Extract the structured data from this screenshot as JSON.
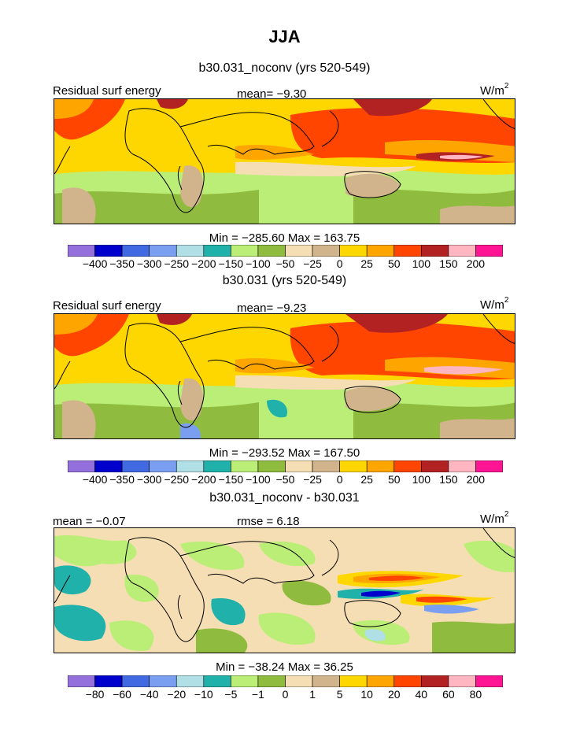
{
  "header": {
    "title": "JJA"
  },
  "chart_data": [
    {
      "type": "heatmap",
      "title": "b30.031_noconv (yrs 520-549)",
      "variable": "Residual surf energy",
      "units_base": "W/m",
      "units_exp": "2",
      "stat_left": "Residual surf energy",
      "stat_center": "mean=   −9.30",
      "minmax": "Min = −285.60 Max = 163.75",
      "levels": [
        "−400",
        "−350",
        "−300",
        "−250",
        "−200",
        "−150",
        "−100",
        "−50",
        "−25",
        "0",
        "25",
        "50",
        "100",
        "150",
        "200"
      ],
      "colors": [
        "#9370db",
        "#0000cd",
        "#4169e1",
        "#7b9ff0",
        "#b0e0e6",
        "#20b2aa",
        "#bbee77",
        "#8fbc3f",
        "#f5deb3",
        "#d2b48c",
        "#ffd700",
        "#ffa500",
        "#ff4500",
        "#b22222",
        "#ffb6c1",
        "#ff1493"
      ]
    },
    {
      "type": "heatmap",
      "title": "b30.031 (yrs 520-549)",
      "variable": "Residual surf energy",
      "units_base": "W/m",
      "units_exp": "2",
      "stat_left": "Residual surf energy",
      "stat_center": "mean=   −9.23",
      "minmax": "Min = −293.52 Max = 167.50",
      "levels": [
        "−400",
        "−350",
        "−300",
        "−250",
        "−200",
        "−150",
        "−100",
        "−50",
        "−25",
        "0",
        "25",
        "50",
        "100",
        "150",
        "200"
      ],
      "colors": [
        "#9370db",
        "#0000cd",
        "#4169e1",
        "#7b9ff0",
        "#b0e0e6",
        "#20b2aa",
        "#bbee77",
        "#8fbc3f",
        "#f5deb3",
        "#d2b48c",
        "#ffd700",
        "#ffa500",
        "#ff4500",
        "#b22222",
        "#ffb6c1",
        "#ff1493"
      ]
    },
    {
      "type": "heatmap",
      "title": "b30.031_noconv - b30.031",
      "units_base": "W/m",
      "units_exp": "2",
      "stat_left": "mean =   −0.07",
      "stat_center": "rmse =    6.18",
      "minmax": "Min = −38.24 Max =   36.25",
      "levels": [
        "−80",
        "−60",
        "−40",
        "−20",
        "−10",
        "−5",
        "−1",
        "0",
        "1",
        "5",
        "10",
        "20",
        "40",
        "60",
        "80"
      ],
      "colors": [
        "#9370db",
        "#0000cd",
        "#4169e1",
        "#7b9ff0",
        "#b0e0e6",
        "#20b2aa",
        "#bbee77",
        "#8fbc3f",
        "#f5deb3",
        "#d2b48c",
        "#ffd700",
        "#ffa500",
        "#ff4500",
        "#b22222",
        "#ffb6c1",
        "#ff1493"
      ]
    }
  ]
}
